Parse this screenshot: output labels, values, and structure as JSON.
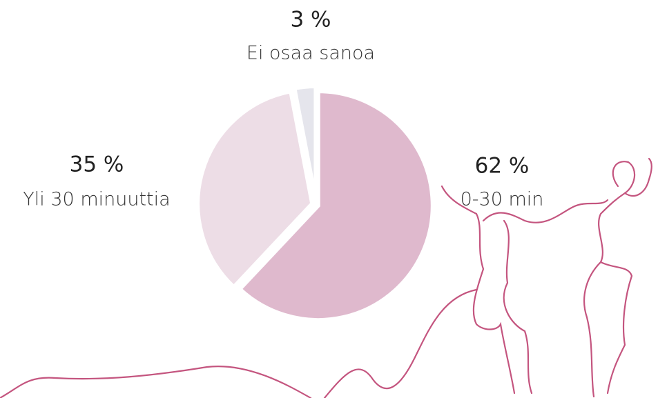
{
  "chart_data": {
    "type": "pie",
    "categories": [
      "0-30 min",
      "Yli 30 minuuttia",
      "Ei osaa sanoa"
    ],
    "values": [
      62,
      35,
      3
    ],
    "value_labels": [
      "62 %",
      "35 %",
      "3 %"
    ],
    "colors": [
      "#dfb9cd",
      "#eddde6",
      "#e5e5ec"
    ]
  }
}
